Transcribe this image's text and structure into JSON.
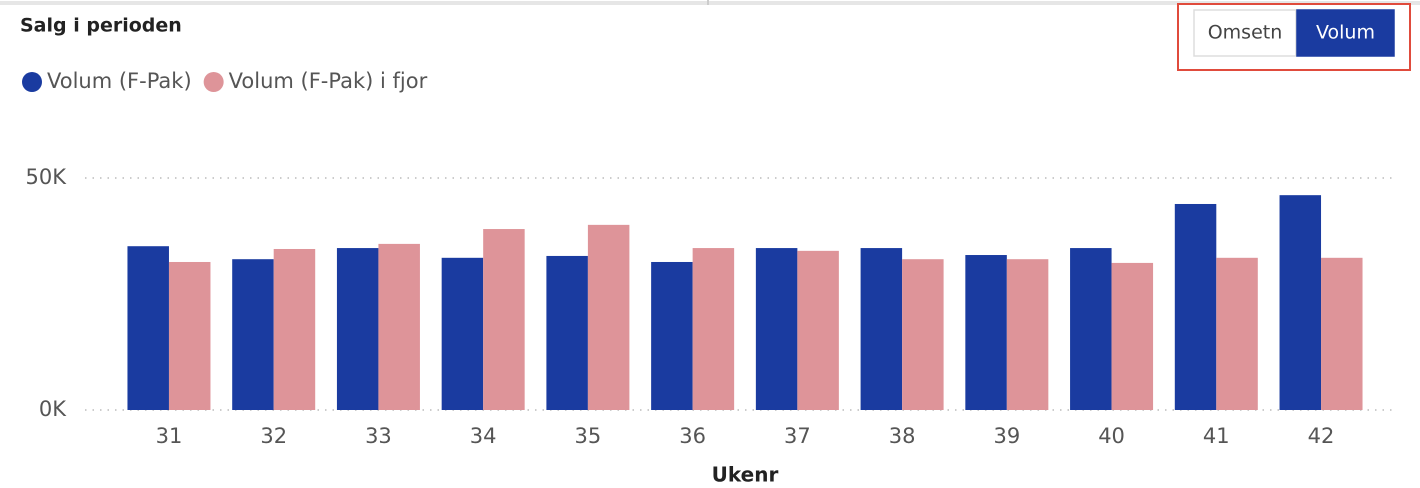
{
  "chart_data": {
    "type": "bar",
    "title": "Salg i perioden",
    "x_label": "Ukenr",
    "categories": [
      "31",
      "32",
      "33",
      "34",
      "35",
      "36",
      "37",
      "38",
      "39",
      "40",
      "41",
      "42"
    ],
    "series": [
      {
        "name": "Volum (F-Pak)",
        "color": "#1a3ba0",
        "values": [
          35300,
          32500,
          34900,
          32800,
          33200,
          31900,
          34900,
          34900,
          33400,
          34900,
          44400,
          46300
        ]
      },
      {
        "name": "Volum (F-Pak) i fjor",
        "color": "#de9499",
        "values": [
          31900,
          34700,
          35800,
          39000,
          39900,
          34900,
          34300,
          32500,
          32500,
          31700,
          32800,
          32800
        ]
      }
    ],
    "ylim": [
      0,
      50000
    ],
    "yticks": [
      {
        "value": 0,
        "label": "0K"
      },
      {
        "value": 50000,
        "label": "50K"
      }
    ],
    "grid": true
  },
  "toggle": {
    "options": [
      "Omsetn",
      "Volum"
    ],
    "selected": 1
  }
}
